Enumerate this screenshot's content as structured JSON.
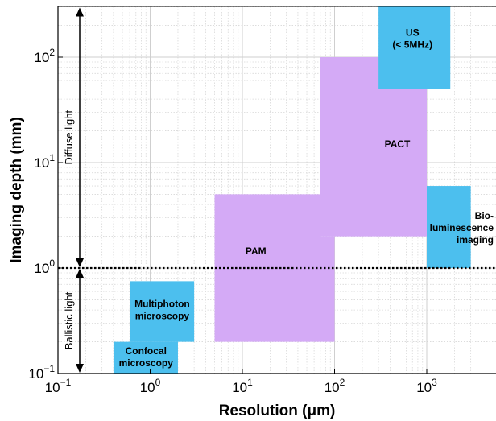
{
  "chart_data": {
    "type": "area",
    "xlabel": "Resolution (μm)",
    "ylabel": "Imaging depth (mm)",
    "x_scale": "log",
    "y_scale": "log",
    "xlim": [
      0.1,
      3000
    ],
    "ylim": [
      0.1,
      300
    ],
    "x_ticks": [
      {
        "value": 0.1,
        "base": "10",
        "exp": "−1"
      },
      {
        "value": 1,
        "base": "10",
        "exp": "0"
      },
      {
        "value": 10,
        "base": "10",
        "exp": "1"
      },
      {
        "value": 100,
        "base": "10",
        "exp": "2"
      },
      {
        "value": 1000,
        "base": "10",
        "exp": "3"
      }
    ],
    "y_ticks": [
      {
        "value": 0.1,
        "base": "10",
        "exp": "−1"
      },
      {
        "value": 1,
        "base": "10",
        "exp": "0"
      },
      {
        "value": 10,
        "base": "10",
        "exp": "1"
      },
      {
        "value": 100,
        "base": "10",
        "exp": "2"
      }
    ],
    "grid": true,
    "threshold_depth": 1,
    "colors": {
      "optical": "#4cbfee",
      "photoacoustic": "#d4aaf6"
    },
    "regions": [
      {
        "name": "pam",
        "lines": [
          "PAM"
        ],
        "color": "photoacoustic",
        "polygon": [
          [
            5,
            0.2
          ],
          [
            100,
            0.2
          ],
          [
            100,
            2
          ],
          [
            70,
            2
          ],
          [
            70,
            5
          ],
          [
            5,
            5
          ]
        ],
        "label_at": [
          14,
          1.45
        ]
      },
      {
        "name": "pact",
        "lines": [
          "PACT"
        ],
        "color": "photoacoustic",
        "polygon": [
          [
            70,
            2
          ],
          [
            1000,
            2
          ],
          [
            1000,
            100
          ],
          [
            70,
            100
          ]
        ],
        "label_at": [
          480,
          15
        ]
      },
      {
        "name": "multiphoton",
        "lines": [
          "Multiphoton",
          "microscopy"
        ],
        "color": "optical",
        "polygon": [
          [
            0.6,
            0.2
          ],
          [
            3,
            0.2
          ],
          [
            3,
            0.75
          ],
          [
            0.6,
            0.75
          ]
        ],
        "label_at": [
          1.35,
          0.4
        ]
      },
      {
        "name": "confocal",
        "lines": [
          "Confocal",
          "microscopy"
        ],
        "color": "optical",
        "polygon": [
          [
            0.4,
            0.1
          ],
          [
            2,
            0.1
          ],
          [
            2,
            0.2
          ],
          [
            0.4,
            0.2
          ]
        ],
        "label_at": [
          0.9,
          0.143
        ]
      },
      {
        "name": "ultrasound",
        "lines": [
          "US",
          "(< 5MHz)"
        ],
        "color": "optical",
        "polygon": [
          [
            300,
            50
          ],
          [
            1800,
            300
          ],
          [
            300,
            300
          ]
        ],
        "rect": [
          [
            300,
            50
          ],
          [
            1800,
            300
          ]
        ],
        "label_at": [
          700,
          150
        ]
      },
      {
        "name": "bioluminescence",
        "lines": [
          "Bio-",
          "luminescence",
          "imaging"
        ],
        "color": "optical",
        "rect": [
          [
            1000,
            1
          ],
          [
            3000,
            6
          ]
        ],
        "label_at": [
          3000,
          2.4
        ]
      }
    ],
    "annotations": [
      {
        "text": "Diffuse light",
        "from": 1,
        "to": 300
      },
      {
        "text": "Ballistic light",
        "from": 0.1,
        "to": 1
      }
    ]
  }
}
